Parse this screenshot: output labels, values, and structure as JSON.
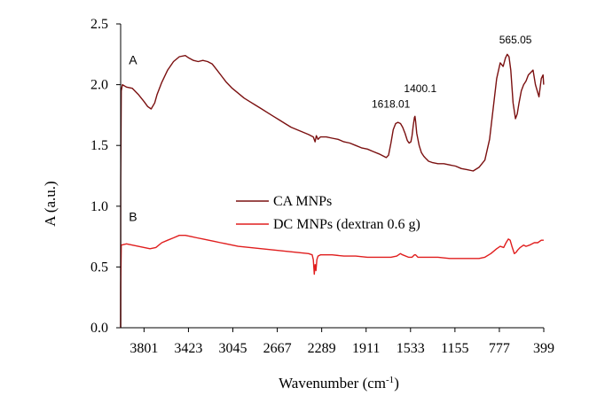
{
  "chart_data": {
    "type": "line",
    "title": "",
    "xlabel": "Wavenumber  (cm",
    "xlabel_sup": "-1",
    "xlabel_suffix": ")",
    "ylabel": "A (a.u.)",
    "xlim": [
      4000,
      399
    ],
    "ylim": [
      0,
      2.5
    ],
    "x_ticks": [
      {
        "value": 3801,
        "label": "3801"
      },
      {
        "value": 3423,
        "label": "3423"
      },
      {
        "value": 3045,
        "label": "3045"
      },
      {
        "value": 2667,
        "label": "2667"
      },
      {
        "value": 2289,
        "label": "2289"
      },
      {
        "value": 1911,
        "label": "1911"
      },
      {
        "value": 1533,
        "label": "1533"
      },
      {
        "value": 1155,
        "label": "1155"
      },
      {
        "value": 777,
        "label": "777"
      },
      {
        "value": 399,
        "label": "399"
      }
    ],
    "y_ticks": [
      {
        "value": 0,
        "label": "0.0"
      },
      {
        "value": 0.5,
        "label": "0.5"
      },
      {
        "value": 1.0,
        "label": "1.0"
      },
      {
        "value": 1.5,
        "label": "1.5"
      },
      {
        "value": 2.0,
        "label": "2.0"
      },
      {
        "value": 2.5,
        "label": "2.5"
      }
    ],
    "series": [
      {
        "name": "CA MNPs",
        "tag": "A",
        "color": "#7b1010",
        "points": [
          [
            4000,
            0.0
          ],
          [
            3999,
            1.2
          ],
          [
            3995,
            1.95
          ],
          [
            3985,
            2.0
          ],
          [
            3950,
            1.98
          ],
          [
            3900,
            1.97
          ],
          [
            3850,
            1.92
          ],
          [
            3800,
            1.86
          ],
          [
            3770,
            1.82
          ],
          [
            3740,
            1.8
          ],
          [
            3710,
            1.85
          ],
          [
            3690,
            1.92
          ],
          [
            3650,
            2.02
          ],
          [
            3600,
            2.12
          ],
          [
            3550,
            2.19
          ],
          [
            3500,
            2.23
          ],
          [
            3450,
            2.24
          ],
          [
            3420,
            2.22
          ],
          [
            3380,
            2.2
          ],
          [
            3340,
            2.19
          ],
          [
            3300,
            2.2
          ],
          [
            3260,
            2.19
          ],
          [
            3220,
            2.17
          ],
          [
            3180,
            2.12
          ],
          [
            3140,
            2.07
          ],
          [
            3100,
            2.02
          ],
          [
            3050,
            1.97
          ],
          [
            3000,
            1.93
          ],
          [
            2950,
            1.89
          ],
          [
            2900,
            1.86
          ],
          [
            2850,
            1.83
          ],
          [
            2800,
            1.8
          ],
          [
            2750,
            1.77
          ],
          [
            2700,
            1.74
          ],
          [
            2650,
            1.71
          ],
          [
            2600,
            1.68
          ],
          [
            2550,
            1.65
          ],
          [
            2500,
            1.63
          ],
          [
            2450,
            1.61
          ],
          [
            2400,
            1.59
          ],
          [
            2360,
            1.57
          ],
          [
            2345,
            1.53
          ],
          [
            2335,
            1.58
          ],
          [
            2320,
            1.55
          ],
          [
            2300,
            1.57
          ],
          [
            2250,
            1.57
          ],
          [
            2200,
            1.56
          ],
          [
            2150,
            1.55
          ],
          [
            2100,
            1.53
          ],
          [
            2050,
            1.52
          ],
          [
            2000,
            1.5
          ],
          [
            1950,
            1.48
          ],
          [
            1900,
            1.47
          ],
          [
            1850,
            1.45
          ],
          [
            1800,
            1.43
          ],
          [
            1760,
            1.41
          ],
          [
            1740,
            1.4
          ],
          [
            1720,
            1.42
          ],
          [
            1700,
            1.52
          ],
          [
            1680,
            1.63
          ],
          [
            1660,
            1.68
          ],
          [
            1640,
            1.69
          ],
          [
            1618,
            1.68
          ],
          [
            1600,
            1.65
          ],
          [
            1580,
            1.6
          ],
          [
            1560,
            1.54
          ],
          [
            1545,
            1.52
          ],
          [
            1530,
            1.53
          ],
          [
            1520,
            1.58
          ],
          [
            1510,
            1.66
          ],
          [
            1500,
            1.73
          ],
          [
            1495,
            1.74
          ],
          [
            1490,
            1.7
          ],
          [
            1480,
            1.6
          ],
          [
            1460,
            1.5
          ],
          [
            1440,
            1.44
          ],
          [
            1420,
            1.41
          ],
          [
            1400,
            1.39
          ],
          [
            1380,
            1.37
          ],
          [
            1350,
            1.36
          ],
          [
            1300,
            1.35
          ],
          [
            1250,
            1.35
          ],
          [
            1200,
            1.34
          ],
          [
            1150,
            1.33
          ],
          [
            1100,
            1.31
          ],
          [
            1050,
            1.3
          ],
          [
            1000,
            1.29
          ],
          [
            950,
            1.32
          ],
          [
            900,
            1.38
          ],
          [
            860,
            1.55
          ],
          [
            830,
            1.8
          ],
          [
            800,
            2.05
          ],
          [
            770,
            2.18
          ],
          [
            745,
            2.15
          ],
          [
            725,
            2.22
          ],
          [
            710,
            2.25
          ],
          [
            695,
            2.23
          ],
          [
            680,
            2.12
          ],
          [
            660,
            1.85
          ],
          [
            640,
            1.72
          ],
          [
            625,
            1.76
          ],
          [
            610,
            1.85
          ],
          [
            590,
            1.95
          ],
          [
            570,
            2.0
          ],
          [
            550,
            2.03
          ],
          [
            530,
            2.08
          ],
          [
            510,
            2.1
          ],
          [
            490,
            2.12
          ],
          [
            470,
            2.0
          ],
          [
            455,
            1.95
          ],
          [
            440,
            1.9
          ],
          [
            420,
            2.05
          ],
          [
            405,
            2.08
          ],
          [
            400,
            2.0
          ]
        ]
      },
      {
        "name": "DC MNPs (dextran 0.6 g)",
        "tag": "B",
        "color": "#e01e1e",
        "points": [
          [
            4000,
            0.0
          ],
          [
            3999,
            0.35
          ],
          [
            3995,
            0.68
          ],
          [
            3950,
            0.69
          ],
          [
            3900,
            0.68
          ],
          [
            3850,
            0.67
          ],
          [
            3800,
            0.66
          ],
          [
            3750,
            0.65
          ],
          [
            3700,
            0.66
          ],
          [
            3650,
            0.7
          ],
          [
            3600,
            0.72
          ],
          [
            3550,
            0.74
          ],
          [
            3500,
            0.76
          ],
          [
            3450,
            0.76
          ],
          [
            3400,
            0.75
          ],
          [
            3350,
            0.74
          ],
          [
            3300,
            0.73
          ],
          [
            3250,
            0.72
          ],
          [
            3200,
            0.71
          ],
          [
            3150,
            0.7
          ],
          [
            3100,
            0.69
          ],
          [
            3050,
            0.68
          ],
          [
            3000,
            0.67
          ],
          [
            2900,
            0.66
          ],
          [
            2800,
            0.65
          ],
          [
            2700,
            0.64
          ],
          [
            2600,
            0.63
          ],
          [
            2500,
            0.62
          ],
          [
            2400,
            0.61
          ],
          [
            2370,
            0.6
          ],
          [
            2360,
            0.56
          ],
          [
            2352,
            0.44
          ],
          [
            2345,
            0.52
          ],
          [
            2338,
            0.47
          ],
          [
            2330,
            0.56
          ],
          [
            2320,
            0.59
          ],
          [
            2300,
            0.6
          ],
          [
            2200,
            0.6
          ],
          [
            2100,
            0.59
          ],
          [
            2000,
            0.59
          ],
          [
            1900,
            0.58
          ],
          [
            1800,
            0.58
          ],
          [
            1700,
            0.58
          ],
          [
            1650,
            0.59
          ],
          [
            1620,
            0.61
          ],
          [
            1600,
            0.6
          ],
          [
            1550,
            0.58
          ],
          [
            1520,
            0.58
          ],
          [
            1500,
            0.6
          ],
          [
            1490,
            0.6
          ],
          [
            1470,
            0.58
          ],
          [
            1400,
            0.58
          ],
          [
            1300,
            0.58
          ],
          [
            1200,
            0.57
          ],
          [
            1100,
            0.57
          ],
          [
            1000,
            0.57
          ],
          [
            950,
            0.57
          ],
          [
            900,
            0.58
          ],
          [
            850,
            0.61
          ],
          [
            800,
            0.65
          ],
          [
            770,
            0.67
          ],
          [
            740,
            0.66
          ],
          [
            720,
            0.7
          ],
          [
            700,
            0.73
          ],
          [
            685,
            0.72
          ],
          [
            670,
            0.67
          ],
          [
            650,
            0.61
          ],
          [
            635,
            0.62
          ],
          [
            620,
            0.64
          ],
          [
            600,
            0.66
          ],
          [
            570,
            0.68
          ],
          [
            550,
            0.67
          ],
          [
            520,
            0.68
          ],
          [
            480,
            0.7
          ],
          [
            450,
            0.7
          ],
          [
            420,
            0.72
          ],
          [
            400,
            0.72
          ]
        ]
      }
    ],
    "annotations": [
      {
        "text": "565.05",
        "x": 640,
        "y": 2.34
      },
      {
        "text": "1400.1",
        "x": 1450,
        "y": 1.94
      },
      {
        "text": "1618.01",
        "x": 1700,
        "y": 1.81
      }
    ],
    "series_tags": [
      {
        "text": "A",
        "x": 3930,
        "y": 2.17
      },
      {
        "text": "B",
        "x": 3930,
        "y": 0.88
      }
    ],
    "legend": {
      "placement": "center-left",
      "entries": [
        "CA MNPs",
        "DC MNPs (dextran 0.6 g)"
      ]
    }
  }
}
